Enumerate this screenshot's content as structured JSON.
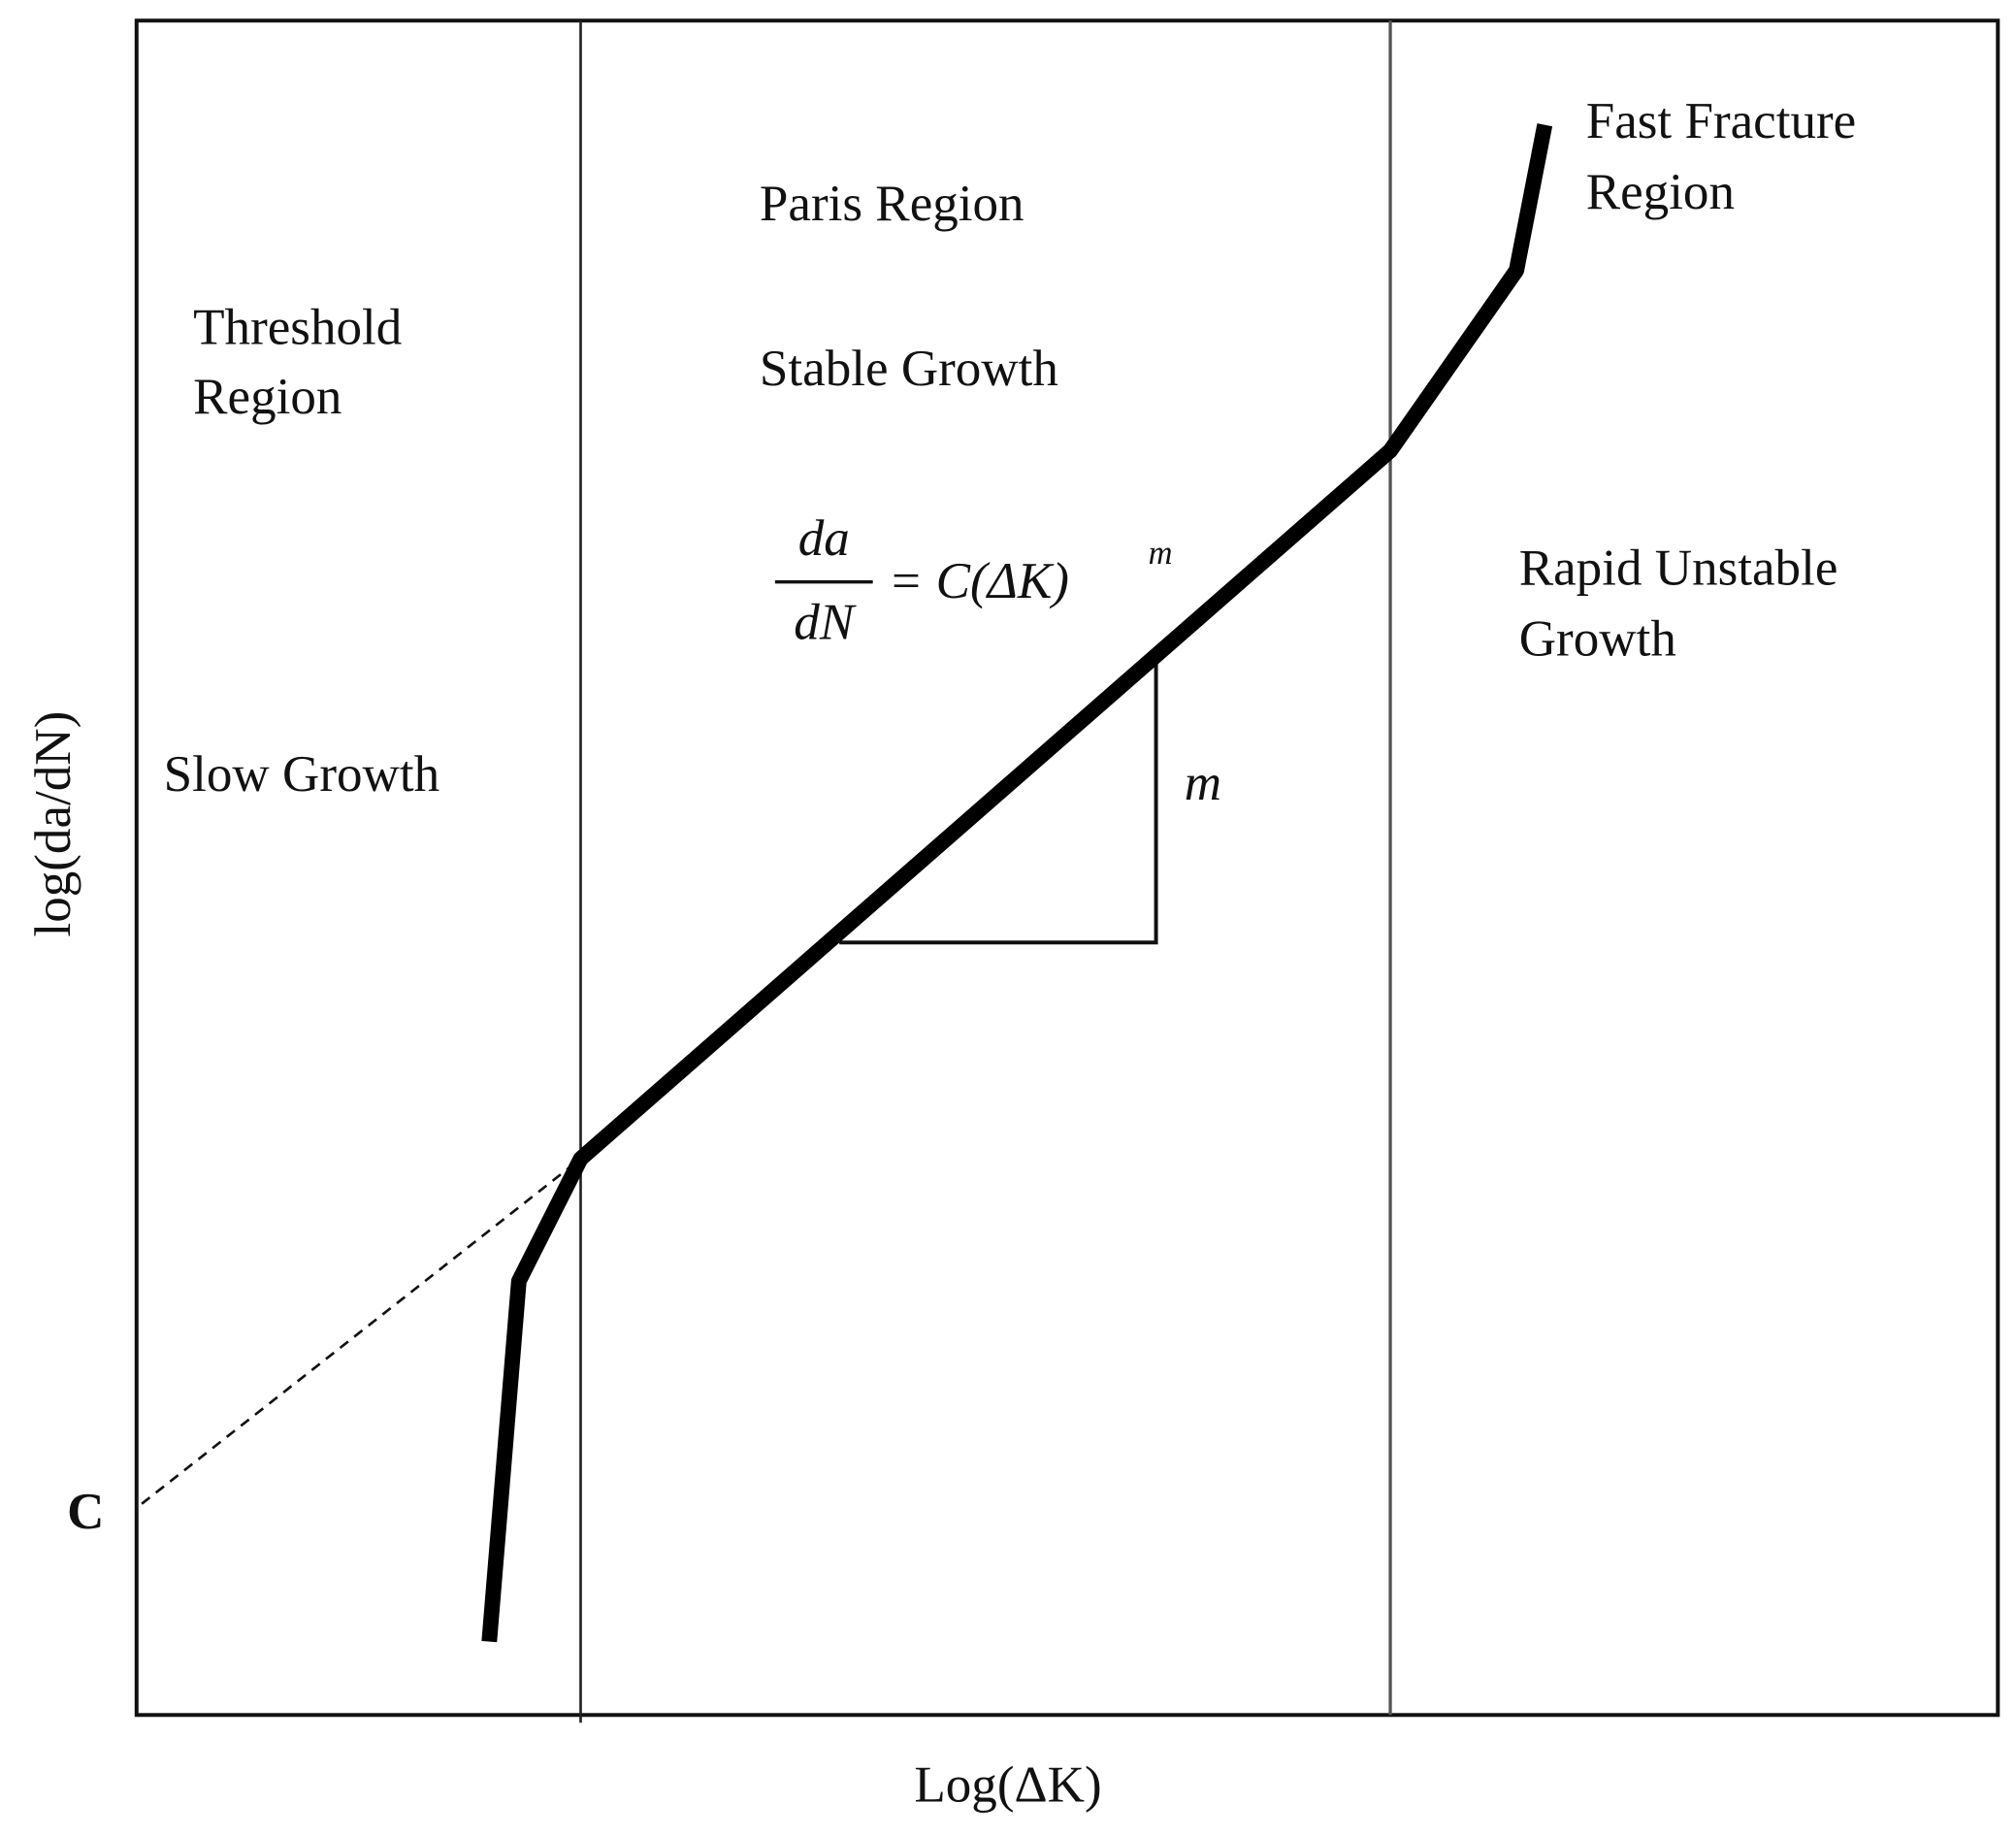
{
  "x_axis_label": "Log(ΔK)",
  "y_axis_label": "log(da/dN)",
  "regions": [
    {
      "title_lines": [
        "Threshold",
        "Region"
      ],
      "description": "Slow Growth"
    },
    {
      "title_lines": [
        "Paris Region"
      ],
      "description": "Stable Growth"
    },
    {
      "title_lines": [
        "Fast Fracture",
        "Region"
      ],
      "description_lines": [
        "Rapid Unstable",
        "Growth"
      ]
    }
  ],
  "equation": {
    "numerator": "da",
    "denominator": "dN",
    "rhs": "= C(ΔK)",
    "exponent": "m"
  },
  "slope_label": "m",
  "intercept_label": "C"
}
